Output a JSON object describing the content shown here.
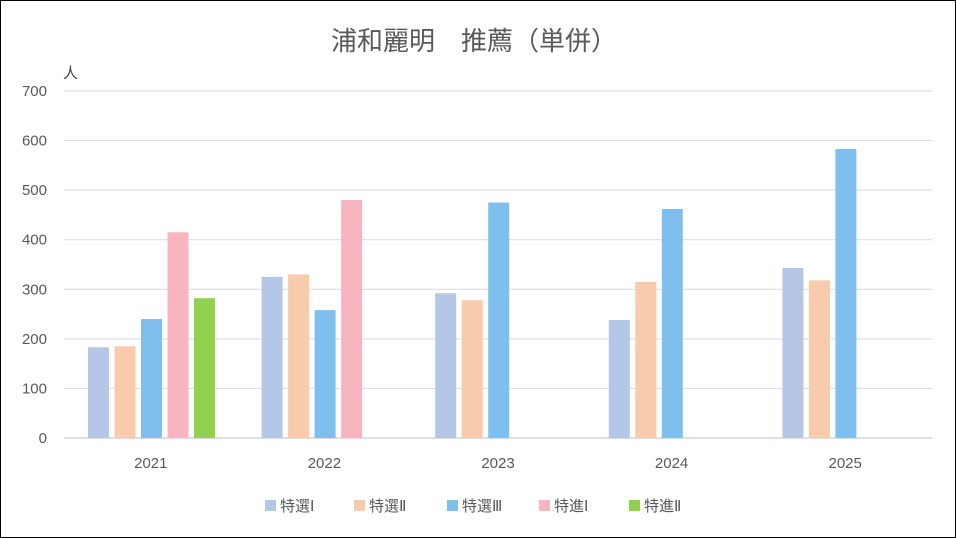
{
  "chart_data": {
    "type": "bar",
    "title": "浦和麗明　推薦（単併）",
    "ylabel": "人",
    "xlabel": "",
    "ylim": [
      0,
      700
    ],
    "yticks": [
      0,
      100,
      200,
      300,
      400,
      500,
      600,
      700
    ],
    "grid": true,
    "legend_position": "bottom",
    "categories": [
      "2021",
      "2022",
      "2023",
      "2024",
      "2025"
    ],
    "series": [
      {
        "name": "特選Ⅰ",
        "color": "#B4C7E7",
        "values": [
          183,
          325,
          292,
          238,
          343
        ]
      },
      {
        "name": "特選Ⅱ",
        "color": "#F8CBAD",
        "values": [
          185,
          330,
          278,
          315,
          318
        ]
      },
      {
        "name": "特選Ⅲ",
        "color": "#7FBFED",
        "values": [
          240,
          258,
          475,
          462,
          583
        ]
      },
      {
        "name": "特進Ⅰ",
        "color": "#F8B4BF",
        "values": [
          415,
          480,
          null,
          null,
          null
        ]
      },
      {
        "name": "特進Ⅱ",
        "color": "#92D050",
        "values": [
          282,
          null,
          null,
          null,
          null
        ]
      }
    ]
  }
}
